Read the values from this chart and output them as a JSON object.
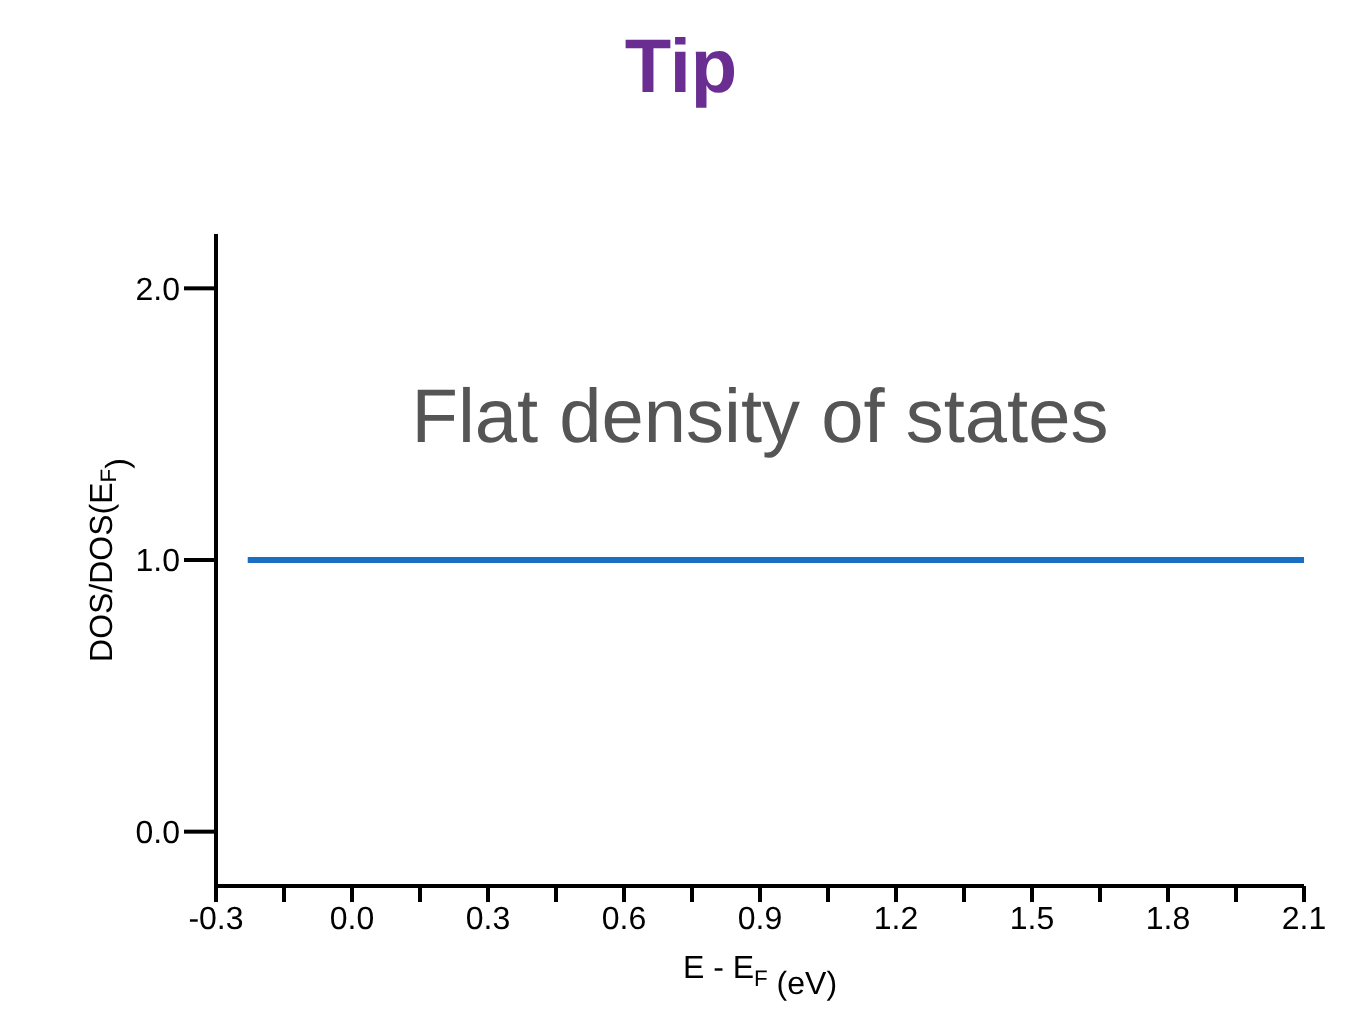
{
  "chart_data": {
    "type": "line",
    "title": "Tip",
    "xlabel": "E - E$_{F}$ (eV)",
    "ylabel": "DOS/DOS(E$_{F}$)",
    "annotations": [
      "Flat density of states"
    ],
    "xlim": [
      -0.3,
      2.1
    ],
    "xticks": [
      {
        "value": -0.3,
        "label": "-0.3"
      },
      {
        "value": -0.15,
        "label": null
      },
      {
        "value": 0,
        "label": "0.0"
      },
      {
        "value": 0.15,
        "label": null
      },
      {
        "value": 0.3,
        "label": "0.3"
      },
      {
        "value": 0.45,
        "label": null
      },
      {
        "value": 0.6,
        "label": "0.6"
      },
      {
        "value": 0.75,
        "label": null
      },
      {
        "value": 0.9,
        "label": "0.9"
      },
      {
        "value": 1.05,
        "label": null
      },
      {
        "value": 1.2,
        "label": "1.2"
      },
      {
        "value": 1.35,
        "label": null
      },
      {
        "value": 1.5,
        "label": "1.5"
      },
      {
        "value": 1.65,
        "label": null
      },
      {
        "value": 1.8,
        "label": "1.8"
      },
      {
        "value": 1.95,
        "label": null
      },
      {
        "value": 2.1,
        "label": "2.1"
      }
    ],
    "ylim": [
      -0.2,
      2.2
    ],
    "yticks": [
      {
        "value": 0,
        "label": "0.0"
      },
      {
        "value": 1,
        "label": "1.0"
      },
      {
        "value": 2,
        "label": "2.0"
      }
    ],
    "marker": "none",
    "series": [
      {
        "color": "#1a6fc4",
        "x": [
          -0.23,
          2.1
        ],
        "values": [
          1.0,
          1.0
        ]
      }
    ]
  }
}
